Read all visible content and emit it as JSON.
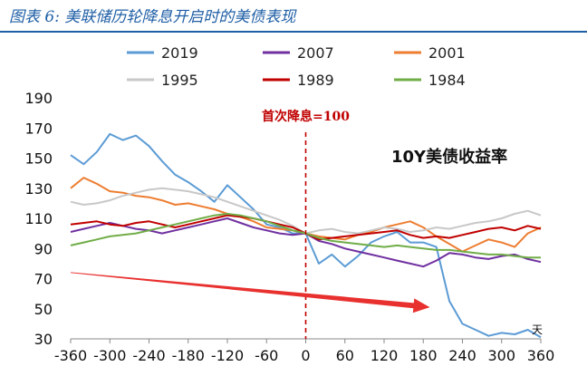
{
  "header": {
    "title": "图表 6:  美联储历轮降息开启时的美债表现"
  },
  "chart_data": {
    "type": "line",
    "title": "10Y美债收益率",
    "xlabel": "",
    "ylabel": "",
    "x_unit": "天",
    "xlim": [
      -360,
      360
    ],
    "ylim": [
      30,
      190
    ],
    "xticks": [
      -360,
      -300,
      -240,
      -180,
      -120,
      -60,
      0,
      60,
      120,
      180,
      240,
      300,
      360
    ],
    "yticks": [
      30,
      50,
      70,
      90,
      110,
      130,
      150,
      170,
      190
    ],
    "legend": "top",
    "annotations": [
      {
        "text": "首次降息=100",
        "x": 0,
        "color": "#c00000"
      }
    ],
    "series": [
      {
        "name": "2019",
        "color": "#5b9bd5",
        "x": [
          -360,
          -340,
          -320,
          -300,
          -280,
          -260,
          -240,
          -220,
          -200,
          -180,
          -160,
          -140,
          -120,
          -100,
          -80,
          -60,
          -40,
          -20,
          0,
          20,
          40,
          60,
          80,
          100,
          120,
          140,
          160,
          180,
          200,
          220,
          240,
          260,
          280,
          300,
          320,
          340,
          360
        ],
        "y": [
          152,
          146,
          154,
          166,
          162,
          165,
          158,
          148,
          139,
          134,
          128,
          121,
          132,
          124,
          116,
          106,
          104,
          100,
          100,
          80,
          86,
          78,
          85,
          94,
          98,
          101,
          94,
          94,
          91,
          55,
          40,
          36,
          32,
          34,
          33,
          36,
          31
        ]
      },
      {
        "name": "2007",
        "color": "#7030a0",
        "x": [
          -360,
          -340,
          -320,
          -300,
          -280,
          -260,
          -240,
          -220,
          -200,
          -180,
          -160,
          -140,
          -120,
          -100,
          -80,
          -60,
          -40,
          -20,
          0,
          20,
          40,
          60,
          80,
          100,
          120,
          140,
          160,
          180,
          200,
          220,
          240,
          260,
          280,
          300,
          320,
          340,
          360
        ],
        "y": [
          101,
          103,
          105,
          107,
          105,
          103,
          102,
          100,
          102,
          104,
          106,
          108,
          110,
          107,
          104,
          102,
          100,
          99,
          100,
          95,
          93,
          90,
          88,
          86,
          84,
          82,
          80,
          78,
          82,
          87,
          86,
          84,
          83,
          85,
          86,
          83,
          81
        ]
      },
      {
        "name": "2001",
        "color": "#ed7d31",
        "x": [
          -360,
          -340,
          -320,
          -300,
          -280,
          -260,
          -240,
          -220,
          -200,
          -180,
          -160,
          -140,
          -120,
          -100,
          -80,
          -60,
          -40,
          -20,
          0,
          20,
          40,
          60,
          80,
          100,
          120,
          140,
          160,
          180,
          200,
          220,
          240,
          260,
          280,
          300,
          320,
          340,
          360
        ],
        "y": [
          130,
          137,
          133,
          128,
          127,
          125,
          124,
          122,
          119,
          120,
          118,
          116,
          113,
          111,
          108,
          104,
          103,
          102,
          100,
          98,
          97,
          96,
          99,
          101,
          104,
          106,
          108,
          104,
          98,
          93,
          88,
          92,
          96,
          94,
          91,
          100,
          104
        ]
      },
      {
        "name": "1995",
        "color": "#c8c8c8",
        "x": [
          -360,
          -340,
          -320,
          -300,
          -280,
          -260,
          -240,
          -220,
          -200,
          -180,
          -160,
          -140,
          -120,
          -100,
          -80,
          -60,
          -40,
          -20,
          0,
          20,
          40,
          60,
          80,
          100,
          120,
          140,
          160,
          180,
          200,
          220,
          240,
          260,
          280,
          300,
          320,
          340,
          360
        ],
        "y": [
          121,
          119,
          120,
          122,
          125,
          127,
          129,
          130,
          129,
          128,
          126,
          124,
          121,
          118,
          115,
          112,
          109,
          105,
          100,
          102,
          103,
          101,
          100,
          102,
          104,
          103,
          101,
          102,
          104,
          103,
          105,
          107,
          108,
          110,
          113,
          115,
          112
        ]
      },
      {
        "name": "1989",
        "color": "#c00000",
        "x": [
          -360,
          -340,
          -320,
          -300,
          -280,
          -260,
          -240,
          -220,
          -200,
          -180,
          -160,
          -140,
          -120,
          -100,
          -80,
          -60,
          -40,
          -20,
          0,
          20,
          40,
          60,
          80,
          100,
          120,
          140,
          160,
          180,
          200,
          220,
          240,
          260,
          280,
          300,
          320,
          340,
          360
        ],
        "y": [
          106,
          107,
          108,
          106,
          105,
          107,
          108,
          106,
          104,
          106,
          108,
          110,
          112,
          111,
          110,
          108,
          106,
          104,
          100,
          96,
          97,
          98,
          99,
          100,
          101,
          102,
          99,
          97,
          98,
          97,
          99,
          101,
          103,
          104,
          102,
          105,
          103
        ]
      },
      {
        "name": "1984",
        "color": "#70ad47",
        "x": [
          -360,
          -340,
          -320,
          -300,
          -280,
          -260,
          -240,
          -220,
          -200,
          -180,
          -160,
          -140,
          -120,
          -100,
          -80,
          -60,
          -40,
          -20,
          0,
          20,
          40,
          60,
          80,
          100,
          120,
          140,
          160,
          180,
          200,
          220,
          240,
          260,
          280,
          300,
          320,
          340,
          360
        ],
        "y": [
          92,
          94,
          96,
          98,
          99,
          100,
          102,
          104,
          106,
          108,
          110,
          112,
          113,
          112,
          110,
          108,
          105,
          102,
          100,
          97,
          95,
          94,
          93,
          92,
          91,
          92,
          91,
          90,
          89,
          89,
          88,
          87,
          86,
          86,
          85,
          84,
          84
        ]
      }
    ],
    "arrow": {
      "from": [
        -360,
        74
      ],
      "to": [
        190,
        51
      ],
      "color": "#e8312f"
    }
  }
}
